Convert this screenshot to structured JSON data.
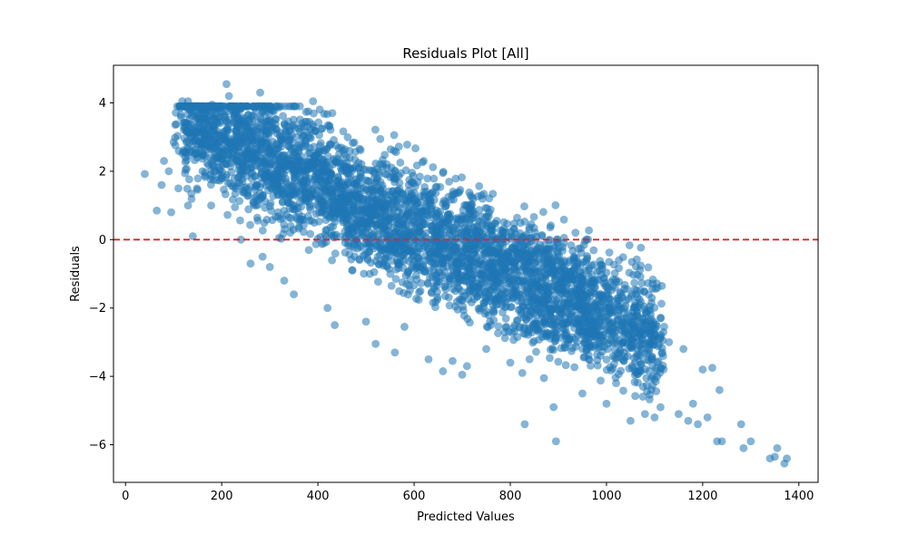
{
  "chart_data": {
    "type": "scatter",
    "title": "Residuals Plot [All]",
    "xlabel": "Predicted Values",
    "ylabel": "Residuals",
    "xlim": [
      -25,
      1440
    ],
    "ylim": [
      -7.1,
      5.1
    ],
    "xticks": [
      0,
      200,
      400,
      600,
      800,
      1000,
      1200,
      1400
    ],
    "yticks": [
      -6,
      -4,
      -2,
      0,
      2,
      4
    ],
    "xtick_labels": [
      "0",
      "200",
      "400",
      "600",
      "800",
      "1000",
      "1200",
      "1400"
    ],
    "ytick_labels": [
      "−6",
      "−4",
      "−2",
      "0",
      "2",
      "4"
    ],
    "reference_line": {
      "y": 0,
      "style": "dashed",
      "color": "#d62728"
    },
    "marker_color": "#1f77b4",
    "marker_alpha": 0.55,
    "grid": false,
    "series": [
      {
        "trend": {
          "slope": -0.00625,
          "intercept": 4.05
        },
        "points": [
          [
            40,
            1.92
          ],
          [
            65,
            0.85
          ],
          [
            75,
            1.6
          ],
          [
            80,
            2.3
          ],
          [
            90,
            2.0
          ],
          [
            95,
            0.8
          ],
          [
            100,
            2.85
          ],
          [
            110,
            1.5
          ],
          [
            115,
            3.65
          ],
          [
            118,
            4.05
          ],
          [
            130,
            1.0
          ],
          [
            130,
            4.05
          ],
          [
            140,
            0.1
          ],
          [
            150,
            3.9
          ],
          [
            160,
            2.0
          ],
          [
            180,
            3.95
          ],
          [
            195,
            3.85
          ],
          [
            210,
            4.55
          ],
          [
            215,
            4.2
          ],
          [
            230,
            3.9
          ],
          [
            240,
            0.0
          ],
          [
            260,
            -0.7
          ],
          [
            280,
            4.3
          ],
          [
            285,
            -0.5
          ],
          [
            300,
            -0.8
          ],
          [
            330,
            -1.2
          ],
          [
            350,
            -1.6
          ],
          [
            380,
            3.75
          ],
          [
            390,
            4.05
          ],
          [
            420,
            -2.0
          ],
          [
            430,
            3.7
          ],
          [
            435,
            -2.5
          ],
          [
            500,
            -2.4
          ],
          [
            520,
            -3.05
          ],
          [
            560,
            -3.3
          ],
          [
            580,
            -2.55
          ],
          [
            620,
            2.3
          ],
          [
            630,
            -3.5
          ],
          [
            660,
            1.95
          ],
          [
            660,
            -3.85
          ],
          [
            680,
            -3.55
          ],
          [
            700,
            -3.95
          ],
          [
            710,
            -3.7
          ],
          [
            750,
            -3.2
          ],
          [
            800,
            -3.6
          ],
          [
            825,
            -3.9
          ],
          [
            830,
            -5.4
          ],
          [
            840,
            -3.5
          ],
          [
            870,
            -4.05
          ],
          [
            890,
            -4.9
          ],
          [
            895,
            -5.9
          ],
          [
            950,
            -4.5
          ],
          [
            1000,
            -4.8
          ],
          [
            1020,
            -4.2
          ],
          [
            1050,
            -5.3
          ],
          [
            1080,
            -5.1
          ],
          [
            1100,
            -2.75
          ],
          [
            1100,
            -5.2
          ],
          [
            1130,
            -3.0
          ],
          [
            1150,
            -5.1
          ],
          [
            1160,
            -3.2
          ],
          [
            1170,
            -5.3
          ],
          [
            1180,
            -4.8
          ],
          [
            1190,
            -5.4
          ],
          [
            1200,
            -3.8
          ],
          [
            1210,
            -5.2
          ],
          [
            1220,
            -3.75
          ],
          [
            1230,
            -5.9
          ],
          [
            1235,
            -4.4
          ],
          [
            1240,
            -5.9
          ],
          [
            1280,
            -5.4
          ],
          [
            1285,
            -6.1
          ],
          [
            1300,
            -5.9
          ],
          [
            1340,
            -6.4
          ],
          [
            1350,
            -6.35
          ],
          [
            1355,
            -6.1
          ],
          [
            1370,
            -6.55
          ],
          [
            1375,
            -6.4
          ]
        ]
      }
    ]
  }
}
